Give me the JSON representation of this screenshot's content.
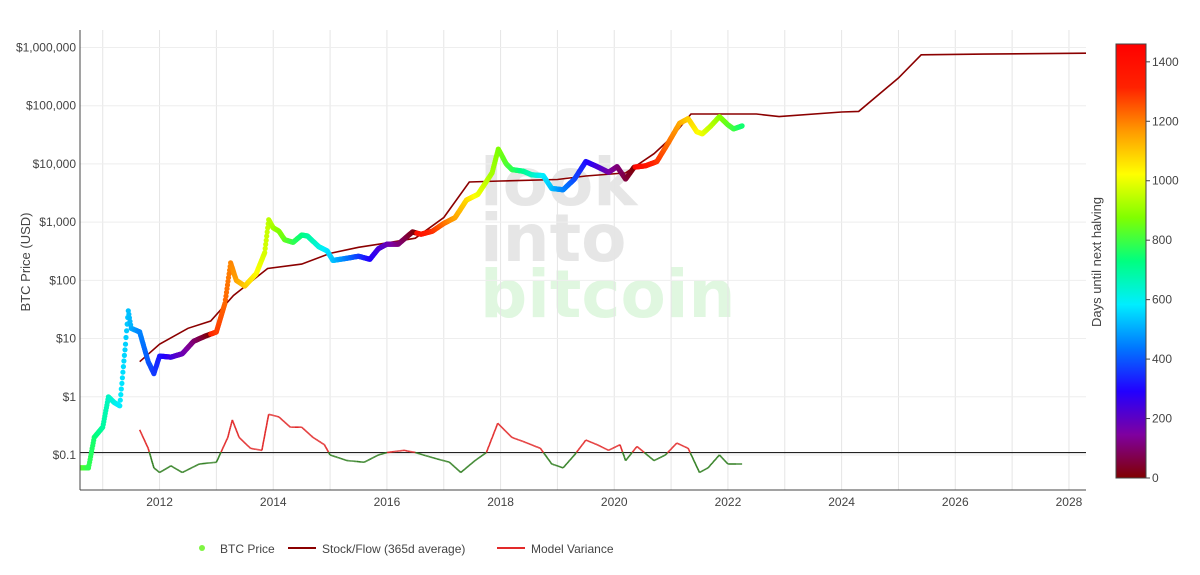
{
  "chart_data": {
    "type": "scatter",
    "title": "",
    "ylabel": "BTC Price (USD)",
    "xlabel": "",
    "y_scale": "log",
    "xlim": [
      2010.6,
      2028.3
    ],
    "ylim": [
      0.025,
      2000000
    ],
    "x_ticks": [
      "2012",
      "2014",
      "2016",
      "2018",
      "2020",
      "2022",
      "2024",
      "2026",
      "2028"
    ],
    "y_ticks": [
      "$0.1",
      "$1",
      "$10",
      "$100",
      "$1,000",
      "$10,000",
      "$100,000",
      "$1,000,000"
    ],
    "grid": true,
    "reference_line": 0.11,
    "colorbar": {
      "title": "Days until next halving",
      "range": [
        0,
        1460
      ],
      "ticks": [
        "0",
        "200",
        "400",
        "600",
        "800",
        "1000",
        "1200",
        "1400"
      ],
      "colorscale": [
        "#800000",
        "#7f00a0",
        "#2200ff",
        "#0077ff",
        "#00eeff",
        "#00ff80",
        "#80ff00",
        "#ffff00",
        "#ff9900",
        "#ff2200",
        "#ff0000"
      ]
    },
    "watermark": [
      "look",
      "into",
      "bitcoin"
    ],
    "series": [
      {
        "name": "BTC Price",
        "kind": "markers-colored-by-days-until-halving",
        "points": [
          {
            "x": 2010.6,
            "y": 0.06
          },
          {
            "x": 2010.75,
            "y": 0.06
          },
          {
            "x": 2010.85,
            "y": 0.2
          },
          {
            "x": 2011.0,
            "y": 0.3
          },
          {
            "x": 2011.1,
            "y": 1.0
          },
          {
            "x": 2011.2,
            "y": 0.8
          },
          {
            "x": 2011.3,
            "y": 0.7
          },
          {
            "x": 2011.4,
            "y": 8
          },
          {
            "x": 2011.45,
            "y": 30
          },
          {
            "x": 2011.5,
            "y": 15
          },
          {
            "x": 2011.65,
            "y": 13
          },
          {
            "x": 2011.8,
            "y": 4
          },
          {
            "x": 2011.9,
            "y": 2.5
          },
          {
            "x": 2012.0,
            "y": 5
          },
          {
            "x": 2012.2,
            "y": 4.8
          },
          {
            "x": 2012.4,
            "y": 5.5
          },
          {
            "x": 2012.6,
            "y": 9
          },
          {
            "x": 2012.8,
            "y": 11
          },
          {
            "x": 2013.0,
            "y": 13
          },
          {
            "x": 2013.15,
            "y": 40
          },
          {
            "x": 2013.25,
            "y": 200
          },
          {
            "x": 2013.35,
            "y": 100
          },
          {
            "x": 2013.5,
            "y": 80
          },
          {
            "x": 2013.7,
            "y": 130
          },
          {
            "x": 2013.85,
            "y": 300
          },
          {
            "x": 2013.92,
            "y": 1100
          },
          {
            "x": 2014.0,
            "y": 800
          },
          {
            "x": 2014.1,
            "y": 700
          },
          {
            "x": 2014.2,
            "y": 500
          },
          {
            "x": 2014.35,
            "y": 450
          },
          {
            "x": 2014.5,
            "y": 600
          },
          {
            "x": 2014.6,
            "y": 580
          },
          {
            "x": 2014.8,
            "y": 380
          },
          {
            "x": 2014.95,
            "y": 320
          },
          {
            "x": 2015.05,
            "y": 220
          },
          {
            "x": 2015.3,
            "y": 240
          },
          {
            "x": 2015.5,
            "y": 260
          },
          {
            "x": 2015.7,
            "y": 230
          },
          {
            "x": 2015.85,
            "y": 350
          },
          {
            "x": 2016.0,
            "y": 420
          },
          {
            "x": 2016.2,
            "y": 420
          },
          {
            "x": 2016.45,
            "y": 680
          },
          {
            "x": 2016.6,
            "y": 620
          },
          {
            "x": 2016.8,
            "y": 700
          },
          {
            "x": 2017.0,
            "y": 950
          },
          {
            "x": 2017.2,
            "y": 1200
          },
          {
            "x": 2017.4,
            "y": 2400
          },
          {
            "x": 2017.6,
            "y": 3000
          },
          {
            "x": 2017.75,
            "y": 5000
          },
          {
            "x": 2017.85,
            "y": 7000
          },
          {
            "x": 2017.96,
            "y": 18000
          },
          {
            "x": 2018.1,
            "y": 10000
          },
          {
            "x": 2018.2,
            "y": 8000
          },
          {
            "x": 2018.4,
            "y": 7500
          },
          {
            "x": 2018.55,
            "y": 6500
          },
          {
            "x": 2018.75,
            "y": 6300
          },
          {
            "x": 2018.9,
            "y": 3800
          },
          {
            "x": 2019.1,
            "y": 3600
          },
          {
            "x": 2019.3,
            "y": 5500
          },
          {
            "x": 2019.5,
            "y": 11000
          },
          {
            "x": 2019.7,
            "y": 9000
          },
          {
            "x": 2019.9,
            "y": 7200
          },
          {
            "x": 2020.05,
            "y": 9000
          },
          {
            "x": 2020.2,
            "y": 5500
          },
          {
            "x": 2020.35,
            "y": 8800
          },
          {
            "x": 2020.55,
            "y": 9300
          },
          {
            "x": 2020.75,
            "y": 11000
          },
          {
            "x": 2020.95,
            "y": 23000
          },
          {
            "x": 2021.15,
            "y": 50000
          },
          {
            "x": 2021.3,
            "y": 60000
          },
          {
            "x": 2021.45,
            "y": 36000
          },
          {
            "x": 2021.55,
            "y": 33000
          },
          {
            "x": 2021.7,
            "y": 45000
          },
          {
            "x": 2021.85,
            "y": 65000
          },
          {
            "x": 2022.0,
            "y": 47000
          },
          {
            "x": 2022.1,
            "y": 40000
          },
          {
            "x": 2022.25,
            "y": 45000
          }
        ]
      },
      {
        "name": "Stock/Flow (365d average)",
        "color": "#8b0000",
        "points": [
          {
            "x": 2011.65,
            "y": 4
          },
          {
            "x": 2012.0,
            "y": 8
          },
          {
            "x": 2012.5,
            "y": 15
          },
          {
            "x": 2012.9,
            "y": 20
          },
          {
            "x": 2013.3,
            "y": 55
          },
          {
            "x": 2013.9,
            "y": 160
          },
          {
            "x": 2014.5,
            "y": 190
          },
          {
            "x": 2015.0,
            "y": 290
          },
          {
            "x": 2015.5,
            "y": 370
          },
          {
            "x": 2016.0,
            "y": 440
          },
          {
            "x": 2016.5,
            "y": 530
          },
          {
            "x": 2017.0,
            "y": 1200
          },
          {
            "x": 2017.45,
            "y": 4900
          },
          {
            "x": 2018.0,
            "y": 5100
          },
          {
            "x": 2019.0,
            "y": 5400
          },
          {
            "x": 2019.5,
            "y": 6200
          },
          {
            "x": 2020.2,
            "y": 7000
          },
          {
            "x": 2020.7,
            "y": 15000
          },
          {
            "x": 2021.0,
            "y": 28000
          },
          {
            "x": 2021.35,
            "y": 72000
          },
          {
            "x": 2022.5,
            "y": 72000
          },
          {
            "x": 2022.9,
            "y": 65000
          },
          {
            "x": 2024.0,
            "y": 78000
          },
          {
            "x": 2024.3,
            "y": 80000
          },
          {
            "x": 2025.0,
            "y": 300000
          },
          {
            "x": 2025.4,
            "y": 750000
          },
          {
            "x": 2026.5,
            "y": 770000
          },
          {
            "x": 2028.3,
            "y": 800000
          }
        ]
      },
      {
        "name": "Model Variance",
        "color": "#e22a2a",
        "color_below_reference": "#2e7d1e",
        "points": [
          {
            "x": 2011.65,
            "y": 0.27
          },
          {
            "x": 2011.8,
            "y": 0.13
          },
          {
            "x": 2011.9,
            "y": 0.06
          },
          {
            "x": 2012.0,
            "y": 0.05
          },
          {
            "x": 2012.2,
            "y": 0.065
          },
          {
            "x": 2012.4,
            "y": 0.05
          },
          {
            "x": 2012.7,
            "y": 0.07
          },
          {
            "x": 2013.0,
            "y": 0.075
          },
          {
            "x": 2013.2,
            "y": 0.2
          },
          {
            "x": 2013.28,
            "y": 0.4
          },
          {
            "x": 2013.4,
            "y": 0.2
          },
          {
            "x": 2013.6,
            "y": 0.13
          },
          {
            "x": 2013.8,
            "y": 0.12
          },
          {
            "x": 2013.92,
            "y": 0.5
          },
          {
            "x": 2014.1,
            "y": 0.45
          },
          {
            "x": 2014.3,
            "y": 0.3
          },
          {
            "x": 2014.5,
            "y": 0.3
          },
          {
            "x": 2014.7,
            "y": 0.2
          },
          {
            "x": 2014.9,
            "y": 0.15
          },
          {
            "x": 2015.0,
            "y": 0.1
          },
          {
            "x": 2015.3,
            "y": 0.08
          },
          {
            "x": 2015.6,
            "y": 0.075
          },
          {
            "x": 2015.85,
            "y": 0.1
          },
          {
            "x": 2016.0,
            "y": 0.11
          },
          {
            "x": 2016.3,
            "y": 0.12
          },
          {
            "x": 2016.5,
            "y": 0.11
          },
          {
            "x": 2016.8,
            "y": 0.09
          },
          {
            "x": 2017.1,
            "y": 0.075
          },
          {
            "x": 2017.3,
            "y": 0.05
          },
          {
            "x": 2017.55,
            "y": 0.08
          },
          {
            "x": 2017.75,
            "y": 0.11
          },
          {
            "x": 2017.95,
            "y": 0.35
          },
          {
            "x": 2018.2,
            "y": 0.2
          },
          {
            "x": 2018.4,
            "y": 0.17
          },
          {
            "x": 2018.7,
            "y": 0.13
          },
          {
            "x": 2018.9,
            "y": 0.07
          },
          {
            "x": 2019.1,
            "y": 0.06
          },
          {
            "x": 2019.3,
            "y": 0.1
          },
          {
            "x": 2019.5,
            "y": 0.18
          },
          {
            "x": 2019.7,
            "y": 0.15
          },
          {
            "x": 2019.9,
            "y": 0.12
          },
          {
            "x": 2020.1,
            "y": 0.15
          },
          {
            "x": 2020.2,
            "y": 0.08
          },
          {
            "x": 2020.4,
            "y": 0.14
          },
          {
            "x": 2020.7,
            "y": 0.08
          },
          {
            "x": 2020.9,
            "y": 0.1
          },
          {
            "x": 2021.1,
            "y": 0.16
          },
          {
            "x": 2021.3,
            "y": 0.13
          },
          {
            "x": 2021.5,
            "y": 0.05
          },
          {
            "x": 2021.65,
            "y": 0.06
          },
          {
            "x": 2021.85,
            "y": 0.1
          },
          {
            "x": 2022.0,
            "y": 0.07
          },
          {
            "x": 2022.25,
            "y": 0.07
          }
        ]
      }
    ],
    "legend": {
      "placement": "bottom",
      "items": [
        {
          "label": "BTC Price",
          "symbol": "dot",
          "color": "#7ff542"
        },
        {
          "label": "Stock/Flow (365d average)",
          "symbol": "line",
          "color": "#8b0000"
        },
        {
          "label": "Model Variance",
          "symbol": "line",
          "color": "#e22a2a"
        }
      ]
    }
  }
}
